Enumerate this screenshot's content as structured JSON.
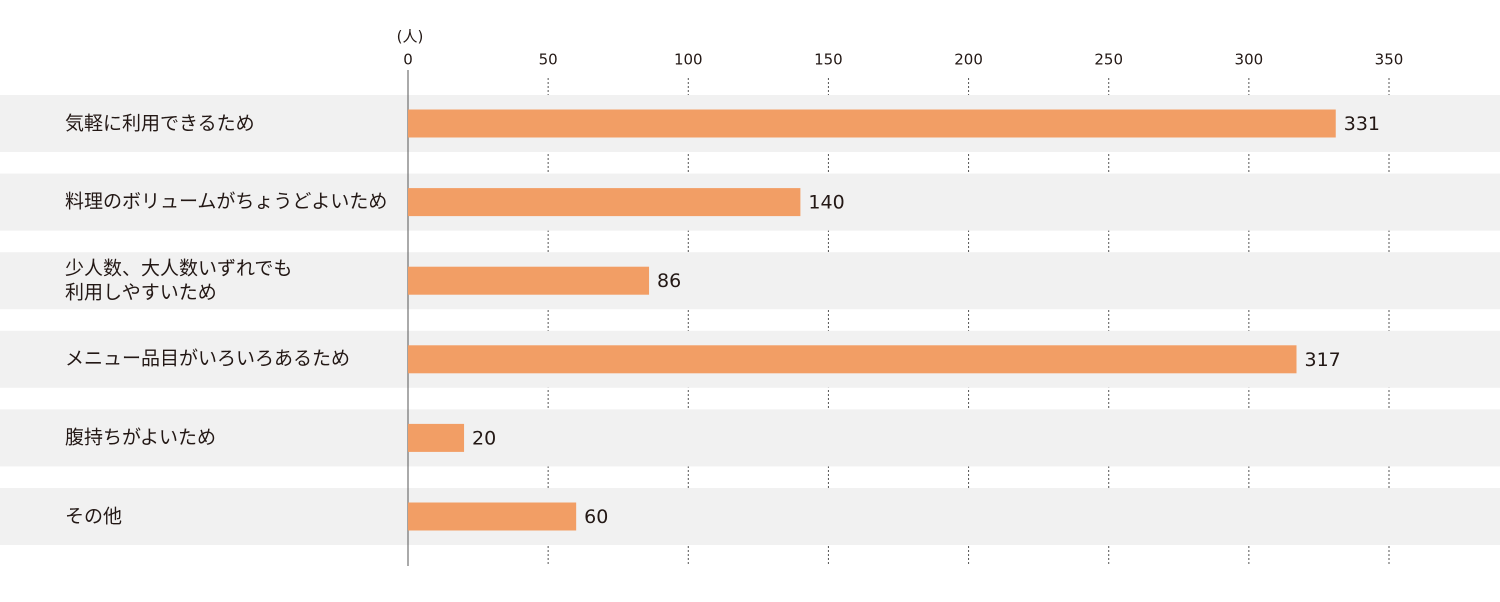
{
  "chart_data": {
    "type": "bar",
    "orientation": "horizontal",
    "unit_label": "(人)",
    "categories": [
      "気軽に利用できるため",
      "料理のボリュームがちょうどよいため",
      "少人数、大人数いずれでも\n利用しやすいため",
      "メニュー品目がいろいろあるため",
      "腹持ちがよいため",
      "その他"
    ],
    "values": [
      331,
      140,
      86,
      317,
      20,
      60
    ],
    "color": "#f29e65",
    "xlim": [
      0,
      350
    ],
    "xticks": [
      0,
      50,
      100,
      150,
      200,
      250,
      300,
      350
    ],
    "grid": true
  }
}
